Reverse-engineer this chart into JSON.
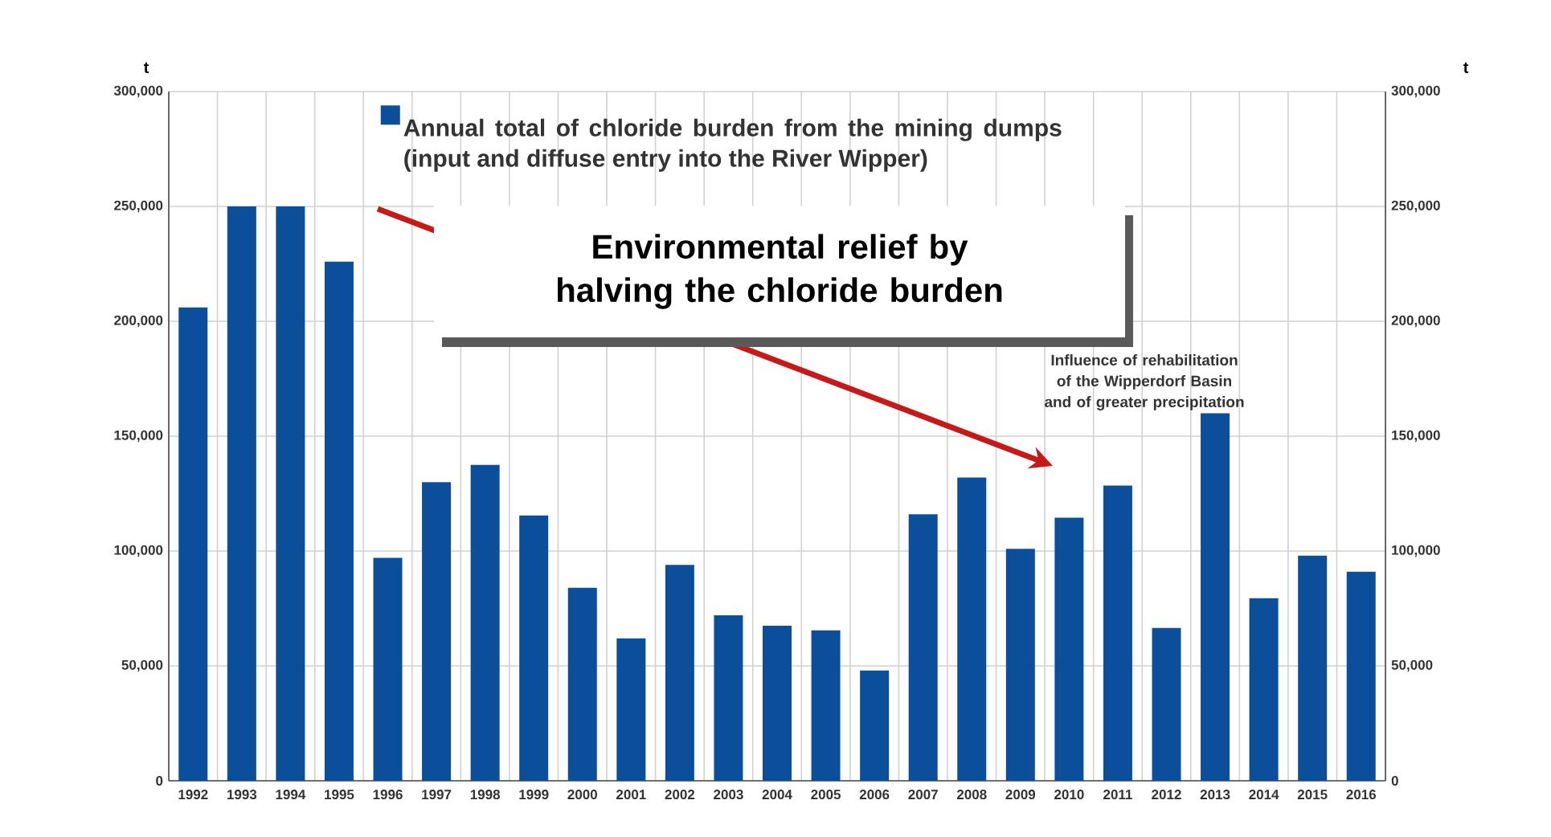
{
  "chart_data": {
    "type": "bar",
    "categories": [
      "1992",
      "1993",
      "1994",
      "1995",
      "1996",
      "1997",
      "1998",
      "1999",
      "2000",
      "2001",
      "2002",
      "2003",
      "2004",
      "2005",
      "2006",
      "2007",
      "2008",
      "2009",
      "2010",
      "2011",
      "2012",
      "2013",
      "2014",
      "2015",
      "2016"
    ],
    "series": [
      {
        "name": "Annual total of chloride burden from the mining dumps (input and diffuse entry into the River Wipper)",
        "color": "#0b4f9b",
        "values": [
          206000,
          250000,
          250000,
          226000,
          97000,
          130000,
          137500,
          115500,
          84000,
          62000,
          94000,
          72000,
          67500,
          65500,
          48000,
          116000,
          132000,
          101000,
          114500,
          128500,
          66500,
          160000,
          79500,
          98000,
          91000
        ]
      }
    ],
    "ylabel": "t",
    "y2label": "t",
    "ylim": [
      0,
      300000
    ],
    "yticks": [
      {
        "value": 0,
        "label": "0"
      },
      {
        "value": 50000,
        "label": "50,000"
      },
      {
        "value": 100000,
        "label": "100,000"
      },
      {
        "value": 150000,
        "label": "150,000"
      },
      {
        "value": 200000,
        "label": "200,000"
      },
      {
        "value": 250000,
        "label": "250,000"
      },
      {
        "value": 300000,
        "label": "300,000"
      }
    ],
    "y2lim": [
      0,
      300000
    ],
    "y2ticks": [
      {
        "value": 0,
        "label": "0"
      },
      {
        "value": 50000,
        "label": "50,000"
      },
      {
        "value": 100000,
        "label": "100,000"
      },
      {
        "value": 150000,
        "label": "150,000"
      },
      {
        "value": 200000,
        "label": "200,000"
      },
      {
        "value": 250000,
        "label": "250,000"
      },
      {
        "value": 300000,
        "label": "300,000"
      }
    ],
    "annotations": [
      "Environmental relief by halving the chloride burden",
      "Influence of rehabilitation of the Wipperdorf Basin and of greater precipitation"
    ],
    "grid": true,
    "legend": "top"
  }
}
